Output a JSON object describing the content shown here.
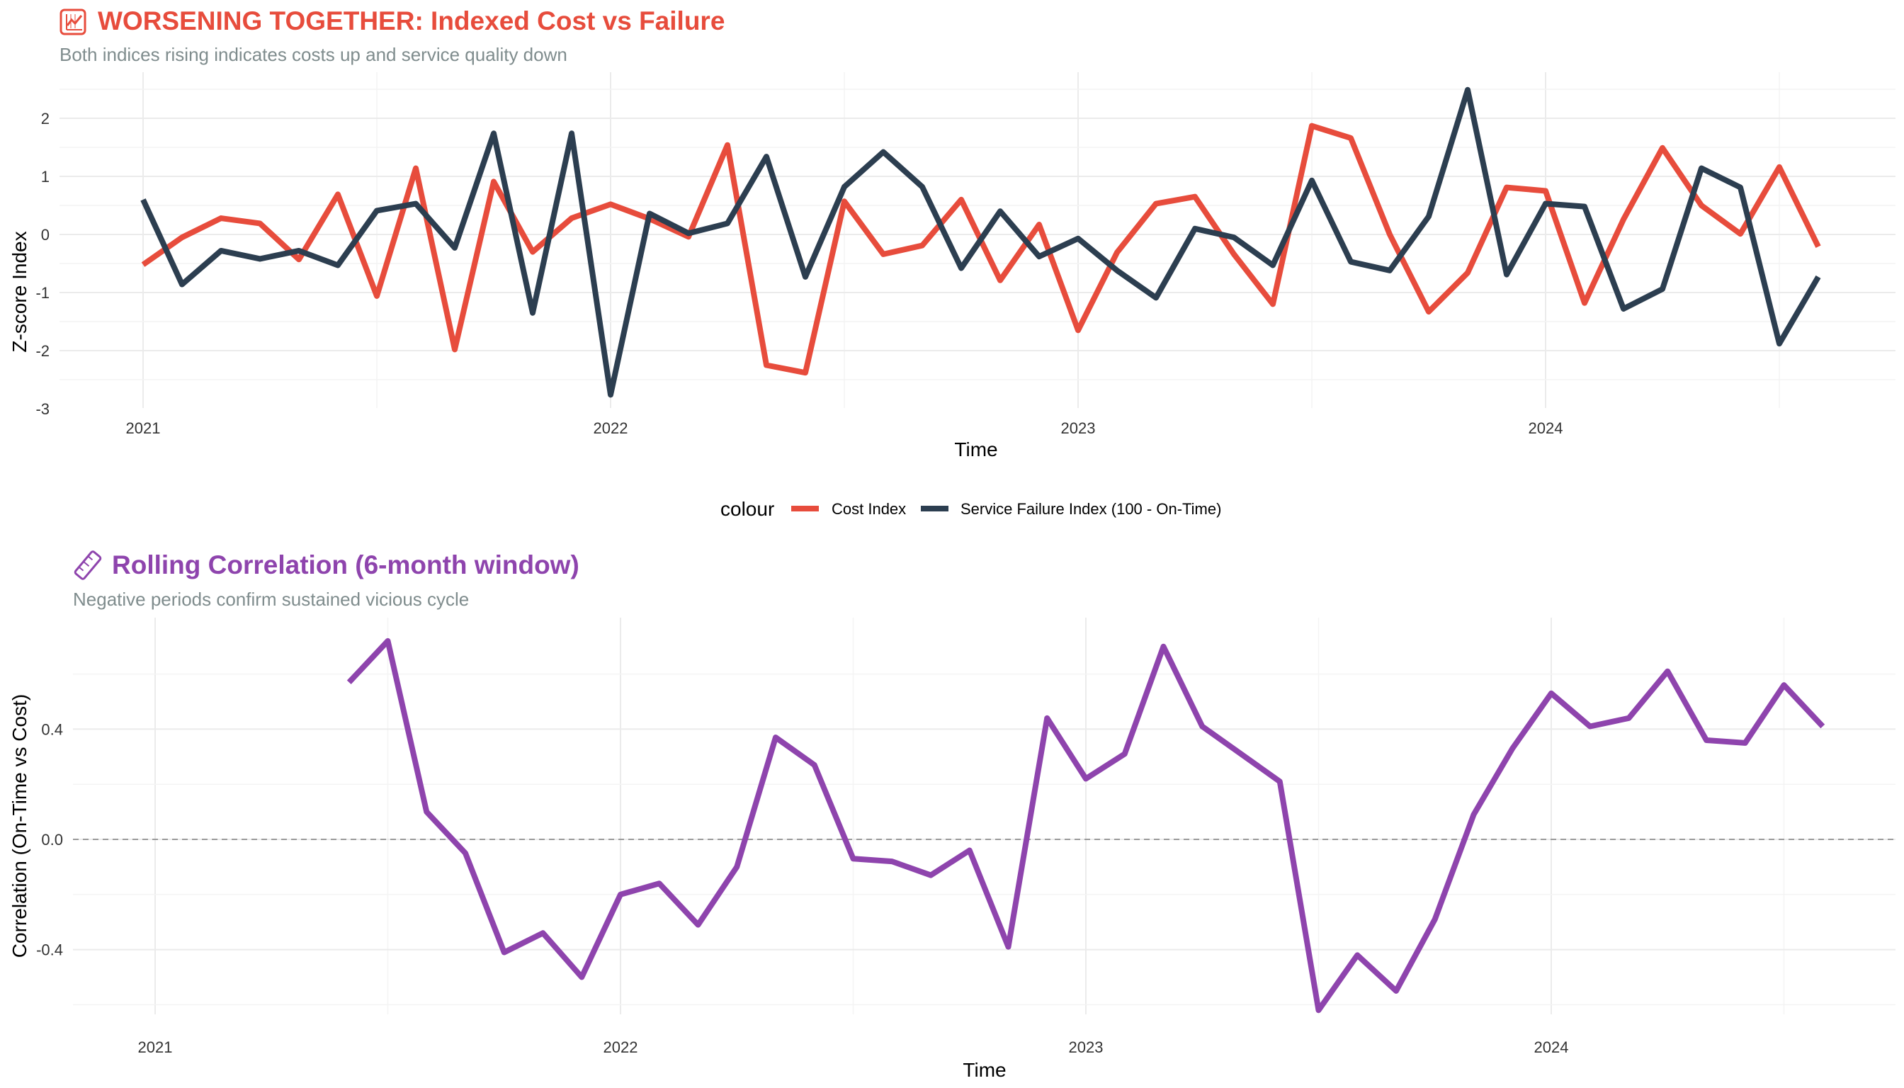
{
  "chart_data": [
    {
      "type": "line",
      "title": "WORSENING TOGETHER: Indexed Cost vs Failure",
      "title_icon": "chart-icon",
      "subtitle": "Both indices rising indicates costs up and service quality down",
      "xlabel": "Time",
      "ylabel": "Z-score Index",
      "x_ticks": [
        "2021",
        "2022",
        "2023",
        "2024"
      ],
      "y_ticks": [
        "2",
        "1",
        "0",
        "-1",
        "-2",
        "-3"
      ],
      "ylim": [
        -3.0,
        2.6
      ],
      "grid": true,
      "legend_title": "colour",
      "legend_position": "bottom",
      "x": [
        "2021-01",
        "2021-02",
        "2021-03",
        "2021-04",
        "2021-05",
        "2021-06",
        "2021-07",
        "2021-08",
        "2021-09",
        "2021-10",
        "2021-11",
        "2021-12",
        "2022-01",
        "2022-02",
        "2022-03",
        "2022-04",
        "2022-05",
        "2022-06",
        "2022-07",
        "2022-08",
        "2022-09",
        "2022-10",
        "2022-11",
        "2022-12",
        "2023-01",
        "2023-02",
        "2023-03",
        "2023-04",
        "2023-05",
        "2023-06",
        "2023-07",
        "2023-08",
        "2023-09",
        "2023-10",
        "2023-11",
        "2023-12",
        "2024-01",
        "2024-02",
        "2024-03",
        "2024-04",
        "2024-05",
        "2024-06",
        "2024-07",
        "2024-08"
      ],
      "series": [
        {
          "name": "Cost Index",
          "color": "#E74C3C",
          "values": [
            -0.52,
            -0.05,
            0.28,
            0.19,
            -0.43,
            0.69,
            -1.06,
            1.14,
            -1.98,
            0.91,
            -0.3,
            0.28,
            0.52,
            0.27,
            -0.04,
            1.54,
            -2.25,
            -2.38,
            0.57,
            -0.34,
            -0.19,
            0.6,
            -0.79,
            0.17,
            -1.65,
            -0.31,
            0.53,
            0.65,
            -0.34,
            -1.2,
            1.87,
            1.66,
            0.0,
            -1.33,
            -0.66,
            0.81,
            0.75,
            -1.18,
            0.26,
            1.49,
            0.5,
            0.01,
            1.16,
            -0.21
          ]
        },
        {
          "name": "Service Failure Index (100 - On-Time)",
          "color": "#2C3E50",
          "values": [
            0.6,
            -0.86,
            -0.28,
            -0.42,
            -0.28,
            -0.53,
            0.41,
            0.53,
            -0.23,
            1.74,
            -1.35,
            1.74,
            -2.76,
            0.36,
            0.02,
            0.19,
            1.34,
            -0.73,
            0.82,
            1.42,
            0.82,
            -0.58,
            0.4,
            -0.38,
            -0.07,
            -0.62,
            -1.09,
            0.1,
            -0.05,
            -0.53,
            0.93,
            -0.47,
            -0.62,
            0.31,
            2.49,
            -0.69,
            0.53,
            0.48,
            -1.28,
            -0.94,
            1.14,
            0.81,
            -1.88,
            -0.73
          ]
        }
      ]
    },
    {
      "type": "line",
      "title": "Rolling Correlation (6-month window)",
      "title_icon": "ruler-icon",
      "subtitle": "Negative periods confirm sustained vicious cycle",
      "xlabel": "Time",
      "ylabel": "Correlation (On-Time vs Cost)",
      "x_ticks": [
        "2021",
        "2022",
        "2023",
        "2024"
      ],
      "y_ticks": [
        "0.4",
        "0.0",
        "-0.4"
      ],
      "ylim": [
        -0.66,
        0.78
      ],
      "reference_line": 0.0,
      "grid": true,
      "x": [
        "2021-06",
        "2021-07",
        "2021-08",
        "2021-09",
        "2021-10",
        "2021-11",
        "2021-12",
        "2022-01",
        "2022-02",
        "2022-03",
        "2022-04",
        "2022-05",
        "2022-06",
        "2022-07",
        "2022-08",
        "2022-09",
        "2022-10",
        "2022-11",
        "2022-12",
        "2023-01",
        "2023-02",
        "2023-03",
        "2023-04",
        "2023-05",
        "2023-06",
        "2023-07",
        "2023-08",
        "2023-09",
        "2023-10",
        "2023-11",
        "2023-12",
        "2024-01",
        "2024-02",
        "2024-03",
        "2024-04",
        "2024-05",
        "2024-06",
        "2024-07",
        "2024-08"
      ],
      "series": [
        {
          "name": "",
          "color": "#8E44AD",
          "values": [
            0.57,
            0.72,
            0.1,
            -0.05,
            -0.41,
            -0.34,
            -0.5,
            -0.2,
            -0.16,
            -0.31,
            -0.1,
            0.37,
            0.27,
            -0.07,
            -0.08,
            -0.13,
            -0.04,
            -0.39,
            0.44,
            0.22,
            0.31,
            0.7,
            0.41,
            0.31,
            0.21,
            -0.62,
            -0.42,
            -0.55,
            -0.29,
            0.09,
            0.33,
            0.53,
            0.41,
            0.44,
            0.61,
            0.36,
            0.35,
            0.56,
            0.41
          ]
        }
      ]
    }
  ]
}
